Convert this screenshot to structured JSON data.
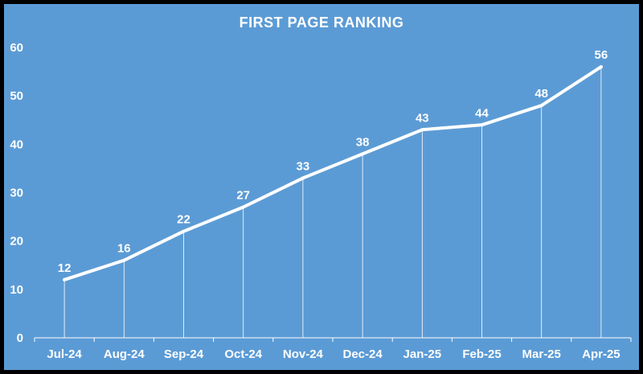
{
  "chart_data": {
    "type": "line",
    "title": "FIRST PAGE RANKING",
    "categories": [
      "Jul-24",
      "Aug-24",
      "Sep-24",
      "Oct-24",
      "Nov-24",
      "Dec-24",
      "Jan-25",
      "Feb-25",
      "Mar-25",
      "Apr-25"
    ],
    "values": [
      12,
      16,
      22,
      27,
      33,
      38,
      43,
      44,
      48,
      56
    ],
    "ylim": [
      0,
      60
    ],
    "yticks": [
      "0",
      "10",
      "20",
      "30",
      "40",
      "50",
      "60"
    ],
    "grid": false,
    "drop_lines": true,
    "data_labels": true,
    "legend": "none"
  },
  "colors": {
    "background": "#5b9bd5",
    "frame": "#000000",
    "line": "#ffffff",
    "text": "#ffffff"
  }
}
